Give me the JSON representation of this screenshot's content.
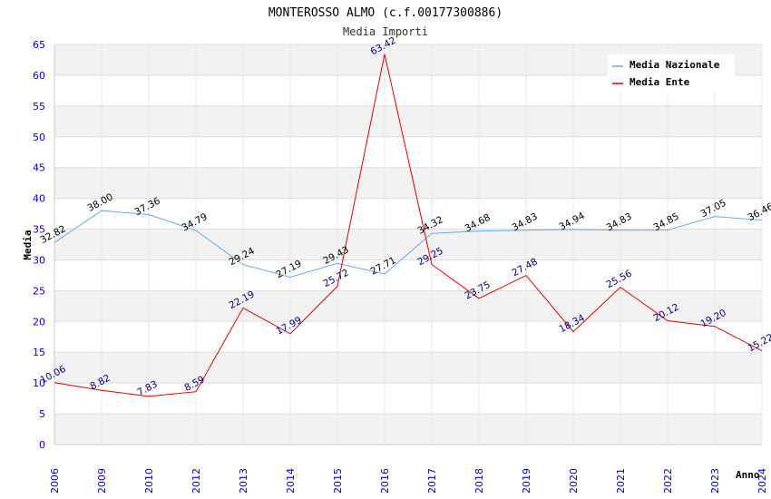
{
  "chart_data": {
    "type": "line",
    "title": "MONTEROSSO ALMO (c.f.00177300886)",
    "subtitle": "Media Importi",
    "xlabel": "Anno",
    "ylabel": "Media",
    "ylim": [
      0,
      65
    ],
    "yticks": [
      0,
      5,
      10,
      15,
      20,
      25,
      30,
      35,
      40,
      45,
      50,
      55,
      60,
      65
    ],
    "grid": true,
    "legend_position": "top-right",
    "categories": [
      "2006",
      "2009",
      "2010",
      "2012",
      "2013",
      "2014",
      "2015",
      "2016",
      "2017",
      "2018",
      "2019",
      "2020",
      "2021",
      "2022",
      "2023",
      "2024"
    ],
    "series": [
      {
        "name": "Media Nazionale",
        "color": "#66aaee",
        "values": [
          32.82,
          38.0,
          37.36,
          34.79,
          29.24,
          27.19,
          29.43,
          27.71,
          34.32,
          34.68,
          34.83,
          34.94,
          34.83,
          34.85,
          37.05,
          36.46
        ],
        "labels": [
          "32.82",
          "38.00",
          "37.36",
          "34.79",
          "29.24",
          "27.19",
          "29.43",
          "27.71",
          "34.32",
          "34.68",
          "34.83",
          "34.94",
          "34.83",
          "34.85",
          "37.05",
          "36.46"
        ]
      },
      {
        "name": "Media Ente",
        "color": "#dd0000",
        "values": [
          10.06,
          8.82,
          7.83,
          8.59,
          22.19,
          17.99,
          25.72,
          63.42,
          29.25,
          23.75,
          27.48,
          18.34,
          25.56,
          20.12,
          19.2,
          15.22
        ],
        "labels": [
          "10.06",
          "8.82",
          "7.83",
          "8.59",
          "22.19",
          "17.99",
          "25.72",
          "63.42",
          "29.25",
          "23.75",
          "27.48",
          "18.34",
          "25.56",
          "20.12",
          "19.20",
          "15.22"
        ]
      }
    ]
  }
}
